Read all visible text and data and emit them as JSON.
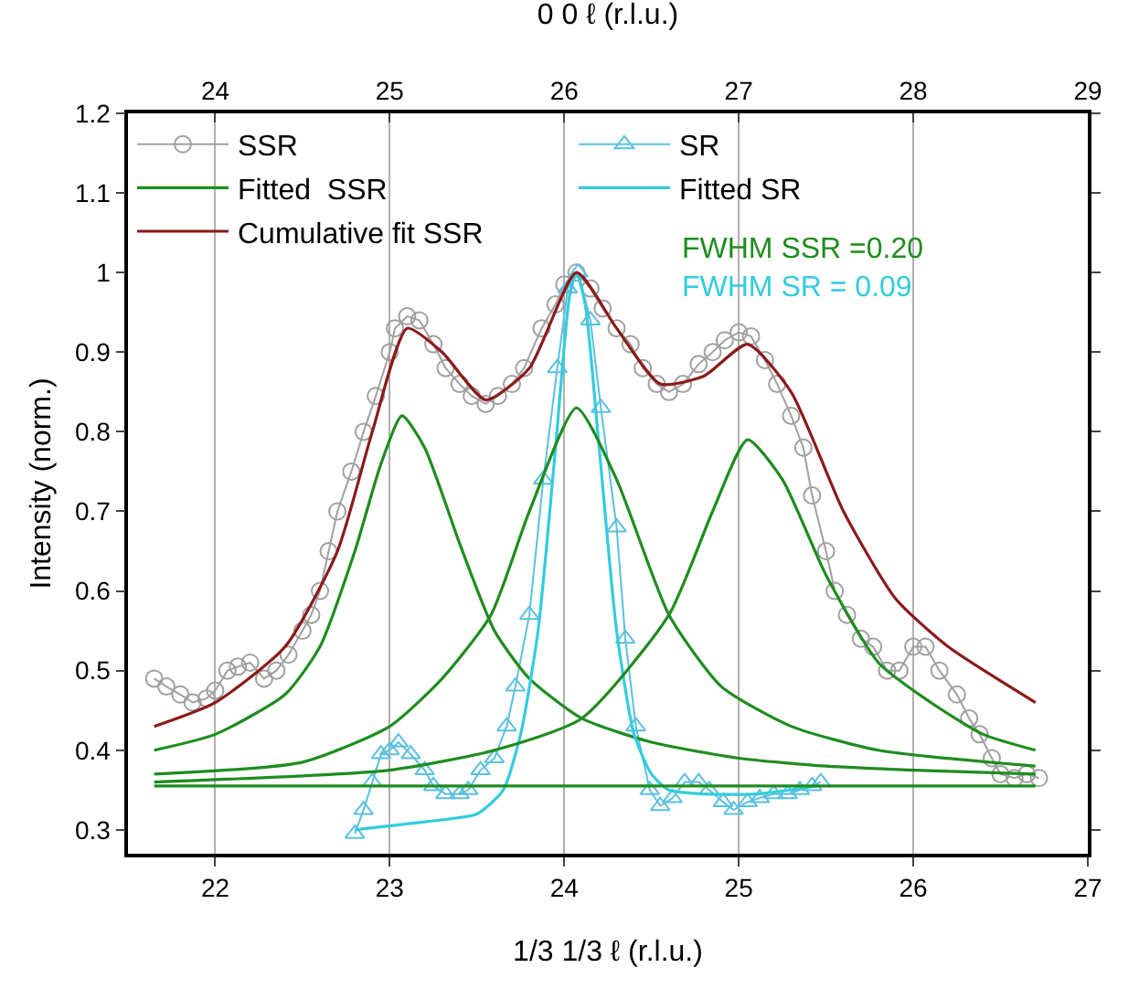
{
  "chart_data": {
    "type": "line",
    "xlabel": "1/3 1/3 ℓ (r.l.u.)",
    "x2label": "0 0 ℓ (r.l.u.)",
    "ylabel": "Intensity (norm.)",
    "xlim": [
      21.5,
      27
    ],
    "xticks": [
      22,
      23,
      24,
      25,
      26,
      27
    ],
    "x2lim": [
      23.5,
      29
    ],
    "x2ticks": [
      24,
      25,
      26,
      27,
      28,
      29
    ],
    "ylim": [
      0.27,
      1.2
    ],
    "yticks": [
      0.3,
      0.4,
      0.5,
      0.6,
      0.7,
      0.8,
      0.9,
      1.0,
      1.1,
      1.2
    ],
    "grid": "x",
    "legend": "top left",
    "annotations": [
      "FWHM SSR =0.20",
      "FWHM SR = 0.09"
    ],
    "series": [
      {
        "name": "SSR",
        "marker": "circle",
        "color": "#a0a0a0",
        "x": [
          21.65,
          21.72,
          21.8,
          21.87,
          21.95,
          22.0,
          22.07,
          22.13,
          22.2,
          22.28,
          22.35,
          22.42,
          22.5,
          22.55,
          22.6,
          22.65,
          22.7,
          22.78,
          22.85,
          22.92,
          23.0,
          23.03,
          23.1,
          23.17,
          23.25,
          23.32,
          23.4,
          23.47,
          23.55,
          23.62,
          23.7,
          23.77,
          23.87,
          23.95,
          24.0,
          24.07,
          24.15,
          24.22,
          24.3,
          24.38,
          24.45,
          24.53,
          24.6,
          24.68,
          24.77,
          24.85,
          24.92,
          25.0,
          25.07,
          25.15,
          25.22,
          25.3,
          25.37,
          25.42,
          25.5,
          25.55,
          25.62,
          25.7,
          25.77,
          25.85,
          25.92,
          26.0,
          26.07,
          26.15,
          26.25,
          26.32,
          26.38,
          26.45,
          26.5,
          26.58,
          26.65,
          26.72
        ],
        "values": [
          0.49,
          0.48,
          0.47,
          0.46,
          0.465,
          0.475,
          0.5,
          0.505,
          0.51,
          0.49,
          0.5,
          0.52,
          0.55,
          0.57,
          0.6,
          0.65,
          0.7,
          0.75,
          0.8,
          0.845,
          0.9,
          0.93,
          0.945,
          0.94,
          0.91,
          0.88,
          0.86,
          0.845,
          0.835,
          0.845,
          0.86,
          0.88,
          0.93,
          0.96,
          0.985,
          1.0,
          0.98,
          0.955,
          0.93,
          0.91,
          0.88,
          0.86,
          0.85,
          0.86,
          0.885,
          0.9,
          0.915,
          0.925,
          0.92,
          0.89,
          0.86,
          0.82,
          0.78,
          0.72,
          0.65,
          0.6,
          0.57,
          0.54,
          0.53,
          0.5,
          0.5,
          0.53,
          0.53,
          0.5,
          0.47,
          0.44,
          0.42,
          0.39,
          0.37,
          0.365,
          0.37,
          0.365
        ]
      },
      {
        "name": "SR",
        "marker": "triangle",
        "color": "#5bc0de",
        "x": [
          22.8,
          22.85,
          22.9,
          22.95,
          23.0,
          23.05,
          23.12,
          23.2,
          23.25,
          23.32,
          23.4,
          23.45,
          23.52,
          23.6,
          23.67,
          23.72,
          23.8,
          23.88,
          23.96,
          24.02,
          24.08,
          24.15,
          24.21,
          24.3,
          24.35,
          24.41,
          24.49,
          24.55,
          24.62,
          24.69,
          24.77,
          24.83,
          24.91,
          24.97,
          25.05,
          25.12,
          25.2,
          25.28,
          25.35,
          25.42,
          25.47
        ],
        "values": [
          0.295,
          0.325,
          0.36,
          0.395,
          0.4,
          0.41,
          0.395,
          0.375,
          0.355,
          0.345,
          0.345,
          0.35,
          0.375,
          0.39,
          0.43,
          0.48,
          0.57,
          0.74,
          0.88,
          0.98,
          1.0,
          0.94,
          0.83,
          0.68,
          0.54,
          0.43,
          0.35,
          0.33,
          0.34,
          0.36,
          0.36,
          0.35,
          0.335,
          0.325,
          0.335,
          0.34,
          0.345,
          0.345,
          0.35,
          0.355,
          0.36
        ]
      },
      {
        "name": "Fitted  SSR",
        "marker": "none",
        "color": "#1f8c1f",
        "x": [
          21.65,
          22.0,
          22.4,
          22.6,
          22.8,
          22.95,
          23.07,
          23.2,
          23.4,
          23.6,
          23.8,
          24.1,
          24.5,
          25.0,
          25.5,
          26.0,
          26.7
        ],
        "values": [
          0.4,
          0.42,
          0.47,
          0.53,
          0.65,
          0.76,
          0.82,
          0.78,
          0.66,
          0.55,
          0.49,
          0.44,
          0.41,
          0.39,
          0.38,
          0.375,
          0.37
        ]
      },
      {
        "name": "Fitted SR",
        "marker": "none",
        "color": "#33ccdd",
        "x": [
          22.8,
          23.2,
          23.5,
          23.65,
          23.75,
          23.85,
          23.95,
          24.03,
          24.07,
          24.12,
          24.2,
          24.3,
          24.4,
          24.5,
          24.6,
          24.8,
          25.1,
          25.45
        ],
        "values": [
          0.3,
          0.31,
          0.32,
          0.35,
          0.42,
          0.55,
          0.78,
          0.97,
          1.0,
          0.96,
          0.78,
          0.55,
          0.42,
          0.37,
          0.35,
          0.345,
          0.345,
          0.355
        ]
      },
      {
        "name": "Cumulative fit SSR",
        "marker": "none",
        "color": "#8b1a1a",
        "x": [
          21.65,
          22.0,
          22.4,
          22.7,
          22.9,
          23.1,
          23.3,
          23.55,
          23.8,
          24.07,
          24.3,
          24.55,
          24.8,
          25.05,
          25.3,
          25.6,
          25.9,
          26.2,
          26.7
        ],
        "values": [
          0.43,
          0.46,
          0.53,
          0.65,
          0.8,
          0.93,
          0.9,
          0.84,
          0.88,
          1.0,
          0.93,
          0.86,
          0.87,
          0.91,
          0.85,
          0.7,
          0.59,
          0.53,
          0.46
        ]
      },
      {
        "marker": "none",
        "color": "#1f8c1f",
        "x": [
          21.65,
          22.5,
          23.0,
          23.3,
          23.58,
          23.8,
          24.07,
          24.3,
          24.6,
          24.9,
          25.3,
          25.8,
          26.7
        ],
        "values": [
          0.37,
          0.385,
          0.43,
          0.49,
          0.57,
          0.7,
          0.83,
          0.74,
          0.57,
          0.48,
          0.43,
          0.4,
          0.38
        ]
      },
      {
        "marker": "none",
        "color": "#1f8c1f",
        "x": [
          21.65,
          23.0,
          23.6,
          24.1,
          24.6,
          24.85,
          25.05,
          25.25,
          25.5,
          25.8,
          26.1,
          26.4,
          26.7
        ],
        "values": [
          0.36,
          0.375,
          0.4,
          0.44,
          0.57,
          0.7,
          0.79,
          0.74,
          0.62,
          0.51,
          0.46,
          0.42,
          0.4
        ]
      },
      {
        "marker": "none",
        "color": "#1f8c1f",
        "x": [
          21.65,
          26.7
        ],
        "values": [
          0.355,
          0.355
        ]
      }
    ]
  }
}
